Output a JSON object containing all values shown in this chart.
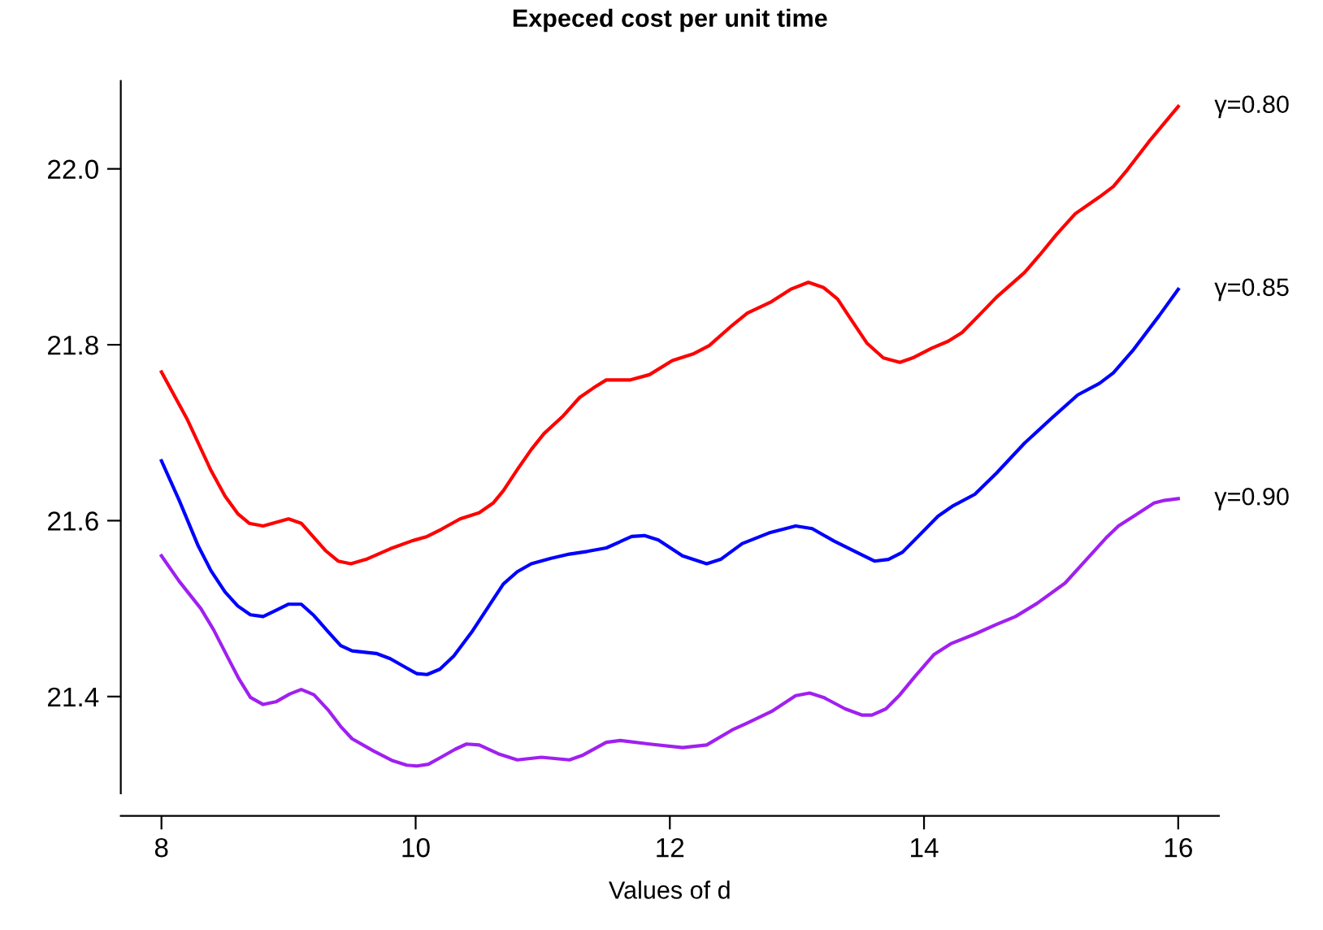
{
  "chart_data": {
    "type": "line",
    "title": "Expeced cost per unit time",
    "xlabel": "Values of d",
    "xlim": [
      7.68,
      16.32
    ],
    "xticks": [
      8,
      10,
      12,
      14,
      16
    ],
    "ylim": [
      21.29,
      22.1
    ],
    "yticks": [
      21.4,
      21.6,
      21.8,
      {
        "value": 22.0,
        "label": "22.0"
      }
    ],
    "grid": false,
    "legend": false,
    "series": [
      {
        "name": "γ=0.80",
        "color": "#ff0000",
        "x": [
          8.0,
          8.2,
          8.39,
          8.5,
          8.6,
          8.69,
          8.8,
          9.0,
          9.1,
          9.29,
          9.39,
          9.49,
          9.61,
          9.8,
          9.97,
          10.09,
          10.2,
          10.35,
          10.5,
          10.61,
          10.69,
          10.8,
          10.91,
          11.01,
          11.16,
          11.29,
          11.4,
          11.5,
          11.69,
          11.84,
          12.02,
          12.19,
          12.31,
          12.49,
          12.61,
          12.8,
          12.95,
          13.09,
          13.21,
          13.32,
          13.42,
          13.55,
          13.68,
          13.81,
          13.91,
          14.06,
          14.19,
          14.3,
          14.45,
          14.57,
          14.79,
          14.91,
          15.04,
          15.19,
          15.38,
          15.49,
          15.6,
          15.77,
          16.0
        ],
        "values": [
          21.769,
          21.716,
          21.657,
          21.628,
          21.608,
          21.597,
          21.594,
          21.602,
          21.597,
          21.566,
          21.554,
          21.551,
          21.556,
          21.568,
          21.577,
          21.582,
          21.59,
          21.602,
          21.609,
          21.62,
          21.634,
          21.658,
          21.681,
          21.699,
          21.719,
          21.74,
          21.751,
          21.76,
          21.76,
          21.766,
          21.782,
          21.79,
          21.799,
          21.822,
          21.836,
          21.849,
          21.863,
          21.871,
          21.865,
          21.852,
          21.83,
          21.802,
          21.785,
          21.78,
          21.785,
          21.796,
          21.804,
          21.814,
          21.836,
          21.854,
          21.882,
          21.902,
          21.925,
          21.949,
          21.968,
          21.98,
          21.999,
          22.031,
          22.071
        ]
      },
      {
        "name": "γ=0.85",
        "color": "#0000ff",
        "x": [
          8.0,
          8.14,
          8.29,
          8.39,
          8.5,
          8.6,
          8.7,
          8.8,
          8.9,
          9.0,
          9.1,
          9.2,
          9.31,
          9.41,
          9.5,
          9.69,
          9.8,
          9.91,
          10.01,
          10.09,
          10.19,
          10.3,
          10.44,
          10.59,
          10.69,
          10.8,
          10.91,
          11.06,
          11.21,
          11.35,
          11.5,
          11.7,
          11.8,
          11.91,
          12.1,
          12.29,
          12.4,
          12.57,
          12.78,
          12.99,
          13.12,
          13.29,
          13.47,
          13.61,
          13.72,
          13.83,
          13.96,
          14.11,
          14.23,
          14.4,
          14.57,
          14.79,
          15.0,
          15.21,
          15.38,
          15.49,
          15.64,
          15.85,
          16.0
        ],
        "values": [
          21.668,
          21.623,
          21.571,
          21.543,
          21.519,
          21.503,
          21.493,
          21.491,
          21.498,
          21.505,
          21.505,
          21.492,
          21.474,
          21.458,
          21.452,
          21.449,
          21.443,
          21.434,
          21.426,
          21.425,
          21.431,
          21.446,
          21.473,
          21.506,
          21.528,
          21.542,
          21.551,
          21.557,
          21.562,
          21.565,
          21.569,
          21.582,
          21.583,
          21.578,
          21.56,
          21.551,
          21.556,
          21.574,
          21.586,
          21.594,
          21.591,
          21.577,
          21.564,
          21.554,
          21.556,
          21.564,
          21.583,
          21.605,
          21.617,
          21.63,
          21.654,
          21.688,
          21.716,
          21.743,
          21.756,
          21.768,
          21.793,
          21.833,
          21.863
        ]
      },
      {
        "name": "γ=0.90",
        "color": "#a020f0",
        "x": [
          8.0,
          8.14,
          8.31,
          8.41,
          8.52,
          8.61,
          8.7,
          8.8,
          8.9,
          9.01,
          9.1,
          9.2,
          9.31,
          9.41,
          9.5,
          9.67,
          9.82,
          9.93,
          10.01,
          10.1,
          10.2,
          10.31,
          10.4,
          10.5,
          10.65,
          10.8,
          10.99,
          11.21,
          11.31,
          11.5,
          11.61,
          11.84,
          12.1,
          12.29,
          12.49,
          12.61,
          12.8,
          12.99,
          13.1,
          13.21,
          13.38,
          13.51,
          13.59,
          13.7,
          13.81,
          13.93,
          14.08,
          14.21,
          14.4,
          14.57,
          14.72,
          14.89,
          15.11,
          15.26,
          15.43,
          15.53,
          15.66,
          15.81,
          15.89,
          16.0
        ],
        "values": [
          21.56,
          21.531,
          21.5,
          21.476,
          21.445,
          21.42,
          21.399,
          21.391,
          21.394,
          21.403,
          21.408,
          21.402,
          21.385,
          21.366,
          21.352,
          21.338,
          21.327,
          21.322,
          21.321,
          21.323,
          21.331,
          21.34,
          21.346,
          21.345,
          21.335,
          21.328,
          21.331,
          21.328,
          21.333,
          21.348,
          21.35,
          21.346,
          21.342,
          21.345,
          21.362,
          21.37,
          21.383,
          21.401,
          21.404,
          21.399,
          21.386,
          21.379,
          21.379,
          21.386,
          21.402,
          21.423,
          21.448,
          21.46,
          21.471,
          21.482,
          21.491,
          21.506,
          21.529,
          21.553,
          21.58,
          21.594,
          21.606,
          21.62,
          21.623,
          21.625
        ]
      }
    ]
  }
}
